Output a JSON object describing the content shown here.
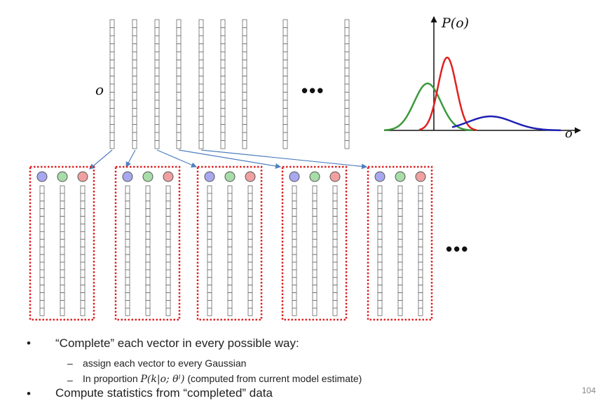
{
  "labels": {
    "o_left": "o",
    "p_axis": "P(o)",
    "o_axis": "o",
    "ellipsis_top": "•••",
    "ellipsis_bottom": "•••"
  },
  "bullets": [
    {
      "text": "“Complete” each vector in every possible way:"
    },
    {
      "text": "Compute statistics from “completed” data"
    }
  ],
  "subbullets": {
    "first": "assign each vector to every Gaussian",
    "second_prefix": "In proportion ",
    "second_math": "P(k|o; θˡ)",
    "second_suffix": " (computed from current model estimate)"
  },
  "page_number": "104",
  "colors": {
    "gauss_blue": "#1f1fb4",
    "gauss_green": "#3a9a3a",
    "gauss_red": "#e02020",
    "circle_blue": "#a8a8f0",
    "circle_green": "#a8dca8",
    "circle_red": "#f0a0a0",
    "box_border": "#dd2222",
    "arrow": "#4f7fbf"
  }
}
